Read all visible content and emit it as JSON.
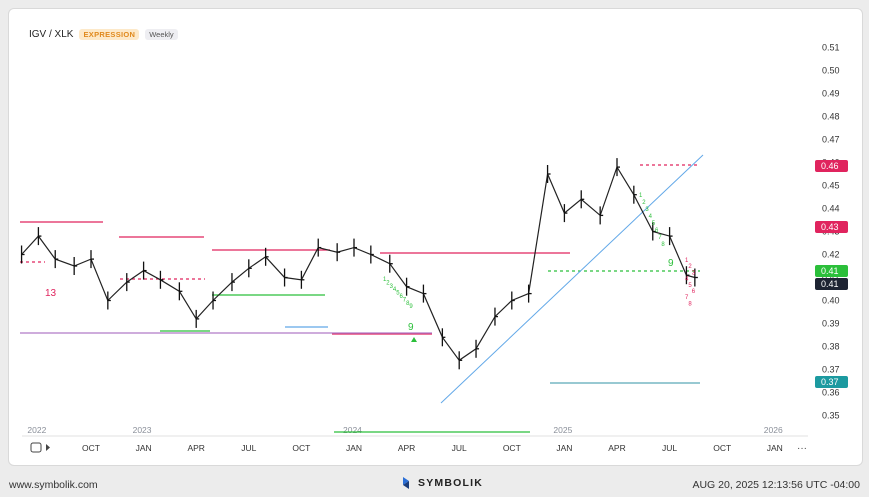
{
  "header": {
    "symbol": "IGV / XLK",
    "badge": "EXPRESSION",
    "interval": "Weekly"
  },
  "colors": {
    "up": "#2bbf3a",
    "down": "#e0245e",
    "trend": "#62a8e8",
    "cyan": "#1c9aa0",
    "dark": "#1e2433",
    "purple": "#b07ac8"
  },
  "chart_data": {
    "type": "line",
    "ylim": [
      0.345,
      0.515
    ],
    "yticks": [
      "0.35",
      "0.36",
      "0.37",
      "0.38",
      "0.39",
      "0.40",
      "0.41",
      "0.42",
      "0.43",
      "0.44",
      "0.45",
      "0.46",
      "0.47",
      "0.48",
      "0.49",
      "0.50",
      "0.51"
    ],
    "x_axis_labels": [
      {
        "label": "OCT",
        "t": 2022.75
      },
      {
        "label": "JAN",
        "t": 2023.0
      },
      {
        "label": "APR",
        "t": 2023.25
      },
      {
        "label": "JUL",
        "t": 2023.5
      },
      {
        "label": "OCT",
        "t": 2023.75
      },
      {
        "label": "JAN",
        "t": 2024.0
      },
      {
        "label": "APR",
        "t": 2024.25
      },
      {
        "label": "JUL",
        "t": 2024.5
      },
      {
        "label": "OCT",
        "t": 2024.75
      },
      {
        "label": "JAN",
        "t": 2025.0
      },
      {
        "label": "APR",
        "t": 2025.25
      },
      {
        "label": "JUL",
        "t": 2025.5
      },
      {
        "label": "OCT",
        "t": 2025.75
      },
      {
        "label": "JAN",
        "t": 2026.0
      }
    ],
    "year_labels": [
      {
        "label": "2022",
        "t": 2022.5
      },
      {
        "label": "2023",
        "t": 2023.0
      },
      {
        "label": "2024",
        "t": 2024.0
      },
      {
        "label": "2025",
        "t": 2025.0
      },
      {
        "label": "2026",
        "t": 2026.0
      }
    ],
    "series": [
      {
        "x": [
          2022.42,
          2022.5,
          2022.58,
          2022.67,
          2022.75,
          2022.83,
          2022.92,
          2023.0,
          2023.08,
          2023.17,
          2023.25,
          2023.33,
          2023.42,
          2023.5,
          2023.58,
          2023.67,
          2023.75,
          2023.83,
          2023.92,
          2024.0,
          2024.08,
          2024.17,
          2024.25,
          2024.33,
          2024.42,
          2024.5,
          2024.58,
          2024.67,
          2024.75,
          2024.83,
          2024.92,
          2025.0,
          2025.08,
          2025.17,
          2025.25,
          2025.33,
          2025.42,
          2025.5,
          2025.58,
          2025.62
        ],
        "y": [
          0.42,
          0.428,
          0.418,
          0.415,
          0.418,
          0.4,
          0.408,
          0.413,
          0.409,
          0.404,
          0.392,
          0.4,
          0.408,
          0.414,
          0.419,
          0.41,
          0.409,
          0.423,
          0.421,
          0.423,
          0.42,
          0.416,
          0.406,
          0.403,
          0.384,
          0.374,
          0.379,
          0.393,
          0.4,
          0.403,
          0.455,
          0.438,
          0.444,
          0.437,
          0.458,
          0.446,
          0.43,
          0.428,
          0.411,
          0.41
        ]
      }
    ],
    "last_value_labels": [
      "0.46",
      "0.43",
      "0.41",
      "0.41",
      "0.37"
    ],
    "annotations": {
      "count_13": "13",
      "count_9": "9",
      "seq_green_2024": [
        "1",
        "2",
        "3",
        "4",
        "5",
        "6",
        "7",
        "8",
        "9"
      ],
      "seq_green_2025": [
        "1",
        "2",
        "3",
        "4",
        "5",
        "6",
        "7",
        "8"
      ],
      "seq_red_2025": [
        "1",
        "2",
        "3",
        "4",
        "5",
        "6",
        "7",
        "8"
      ]
    }
  },
  "footer": {
    "site": "www.symbolik.com",
    "brand": "SYMBOLIK",
    "timestamp": "AUG 20, 2025 12:13:56 UTC -04:00"
  }
}
